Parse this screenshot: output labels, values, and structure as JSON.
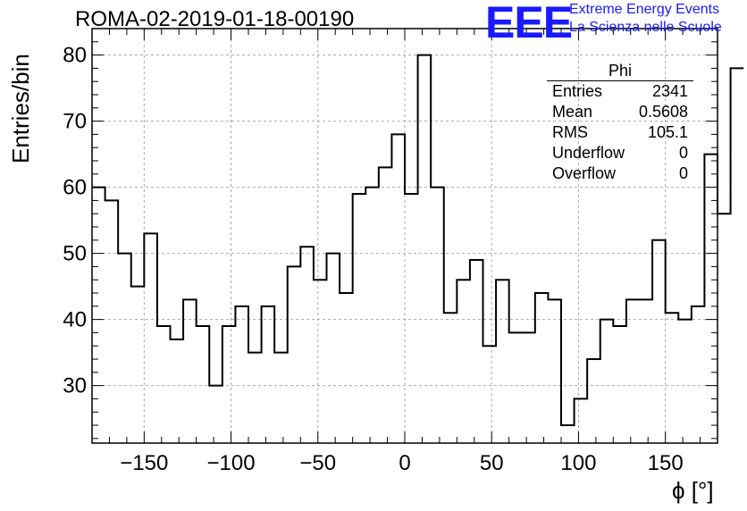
{
  "header": {
    "run_title": "ROMA-02-2019-01-18-00190",
    "logo_text": "EEE",
    "org_line1": "Extreme Energy Events",
    "org_line2": "La Scienza nelle Scuole",
    "brand_color": "#1a1aff"
  },
  "stats_box": {
    "title": "Phi",
    "rows": [
      {
        "label": "Entries",
        "value": "2341"
      },
      {
        "label": "Mean",
        "value": "0.5608"
      },
      {
        "label": "RMS",
        "value": "105.1"
      },
      {
        "label": "Underflow",
        "value": "0"
      },
      {
        "label": "Overflow",
        "value": "0"
      }
    ]
  },
  "chart_data": {
    "type": "histogram",
    "title": "ROMA-02-2019-01-18-00190",
    "xlabel": "ϕ [°]",
    "ylabel": "Entries/bin",
    "xlim": [
      -180,
      180
    ],
    "ylim": [
      21.3,
      84.0
    ],
    "bin_width": 7.5,
    "bin_edges_start": -180,
    "xticks": [
      -150,
      -100,
      -50,
      0,
      50,
      100,
      150
    ],
    "yticks": [
      30,
      40,
      50,
      60,
      70,
      80
    ],
    "grid": true,
    "values": [
      60,
      58,
      50,
      45,
      53,
      39,
      37,
      43,
      39,
      30,
      39,
      42,
      35,
      42,
      35,
      48,
      51,
      46,
      50,
      44,
      59,
      60,
      63,
      68,
      59,
      80,
      60,
      41,
      46,
      49,
      36,
      46,
      38,
      38,
      44,
      43,
      24,
      28,
      34,
      40,
      39,
      43,
      43,
      52,
      41,
      40,
      42,
      65,
      56,
      78
    ]
  }
}
